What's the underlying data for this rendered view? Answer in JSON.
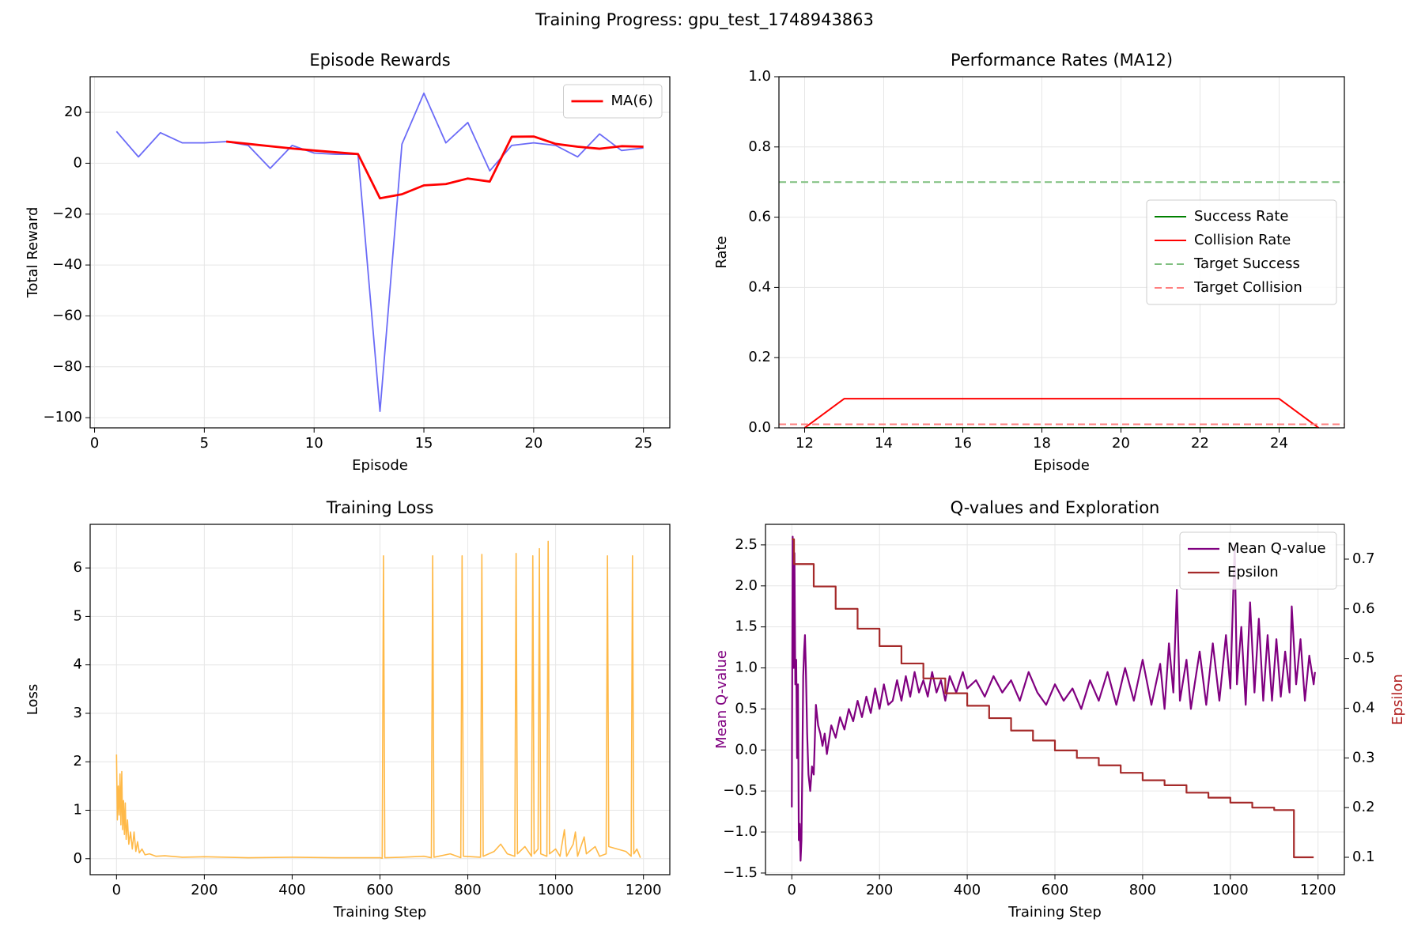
{
  "title": "Training Progress: gpu_test_1748943863",
  "chart_data": [
    {
      "type": "line",
      "title": "Episode Rewards",
      "xlabel": "Episode",
      "ylabel": "Total Reward",
      "xlim": [
        -0.2,
        26.2
      ],
      "ylim": [
        -104,
        34
      ],
      "xticks": [
        0,
        5,
        10,
        15,
        20,
        25
      ],
      "yticks": [
        {
          "value": -100,
          "label": "−100"
        },
        {
          "value": -80,
          "label": "−80"
        },
        {
          "value": -60,
          "label": "−60"
        },
        {
          "value": -40,
          "label": "−40"
        },
        {
          "value": -20,
          "label": "−20"
        },
        0,
        20
      ],
      "grid": true,
      "legend": "upper right",
      "series": [
        {
          "color": "#6b6bf7",
          "width": 1.8,
          "x": [
            1,
            2,
            3,
            4,
            5,
            6,
            7,
            8,
            9,
            10,
            11,
            12,
            13,
            14,
            15,
            16,
            17,
            18,
            19,
            20,
            21,
            22,
            23,
            24,
            25
          ],
          "values": [
            12.5,
            2.5,
            12,
            8,
            8,
            8.5,
            7,
            -2,
            7,
            4,
            3.5,
            3.5,
            -97.5,
            7.5,
            27.5,
            8,
            16,
            -3,
            7,
            8,
            7,
            2.5,
            11.5,
            5,
            6
          ]
        },
        {
          "name": "MA(6)",
          "color": "#ff0000",
          "width": 2.8,
          "x": [
            6,
            7,
            8,
            9,
            10,
            11,
            12,
            13,
            14,
            15,
            16,
            17,
            18,
            19,
            20,
            21,
            22,
            23,
            24,
            25
          ],
          "values": [
            8.5,
            7.6,
            6.7,
            5.8,
            5.0,
            4.3,
            3.6,
            -13.8,
            -12.2,
            -8.7,
            -8.2,
            -6,
            -7.2,
            10.4,
            10.5,
            7.6,
            6.5,
            5.7,
            6.7,
            6.5
          ]
        }
      ]
    },
    {
      "type": "line",
      "title": "Performance Rates (MA12)",
      "xlabel": "Episode",
      "ylabel": "Rate",
      "xlim": [
        11.35,
        25.65
      ],
      "ylim": [
        0,
        1
      ],
      "xticks": [
        12,
        14,
        16,
        18,
        20,
        22,
        24
      ],
      "yticks": [
        {
          "value": 0,
          "label": "0.0"
        },
        0.2,
        0.4,
        0.6,
        0.8,
        {
          "value": 1,
          "label": "1.0"
        }
      ],
      "grid": true,
      "legend": "center right",
      "series": [
        {
          "name": "Success Rate",
          "color": "#008000",
          "width": 2,
          "x": [
            12,
            13,
            14,
            15,
            16,
            17,
            18,
            19,
            20,
            21,
            22,
            23,
            24,
            25
          ],
          "values": [
            0,
            0,
            0,
            0,
            0,
            0,
            0,
            0,
            0,
            0,
            0,
            0,
            0,
            0
          ]
        },
        {
          "name": "Collision Rate",
          "color": "#ff0000",
          "width": 2,
          "x": [
            12,
            13,
            14,
            15,
            16,
            17,
            18,
            19,
            20,
            21,
            22,
            23,
            24,
            25
          ],
          "values": [
            0,
            0.083,
            0.083,
            0.083,
            0.083,
            0.083,
            0.083,
            0.083,
            0.083,
            0.083,
            0.083,
            0.083,
            0.083,
            0
          ]
        },
        {
          "name": "Target Success",
          "color": "#7fbf7f",
          "width": 2,
          "dash": true,
          "kind": "hline",
          "value": 0.7
        },
        {
          "name": "Target Collision",
          "color": "#ff7f7f",
          "width": 2,
          "dash": true,
          "kind": "hline",
          "value": 0.01
        }
      ]
    },
    {
      "type": "line",
      "title": "Training Loss",
      "xlabel": "Training Step",
      "ylabel": "Loss",
      "xlim": [
        -60,
        1260
      ],
      "ylim": [
        -0.33,
        6.9
      ],
      "xticks": [
        0,
        200,
        400,
        600,
        800,
        1000,
        1200
      ],
      "yticks": [
        0,
        1,
        2,
        3,
        4,
        5,
        6
      ],
      "grid": true,
      "series": [
        {
          "color": "#ffb947",
          "width": 1.6,
          "x": [
            0,
            2,
            4,
            6,
            8,
            10,
            12,
            14,
            16,
            18,
            20,
            22,
            25,
            28,
            32,
            36,
            40,
            44,
            48,
            52,
            58,
            65,
            75,
            90,
            110,
            150,
            200,
            300,
            400,
            500,
            600,
            605,
            608,
            611,
            650,
            700,
            717,
            720,
            723,
            760,
            784,
            787,
            790,
            829,
            832,
            835,
            860,
            875,
            890,
            907,
            910,
            913,
            930,
            945,
            948,
            951,
            960,
            963,
            966,
            980,
            983,
            986,
            1000,
            1010,
            1020,
            1025,
            1040,
            1045,
            1050,
            1065,
            1070,
            1090,
            1100,
            1115,
            1118,
            1121,
            1140,
            1160,
            1172,
            1175,
            1178,
            1185,
            1193
          ],
          "values": [
            2.15,
            0.8,
            1.5,
            0.9,
            1.75,
            0.7,
            1.8,
            0.6,
            1.2,
            0.5,
            1.15,
            0.4,
            0.8,
            0.3,
            0.55,
            0.2,
            0.55,
            0.15,
            0.35,
            0.12,
            0.2,
            0.08,
            0.1,
            0.05,
            0.06,
            0.03,
            0.04,
            0.02,
            0.03,
            0.02,
            0.02,
            0.01,
            6.25,
            0.02,
            0.03,
            0.05,
            0.02,
            6.25,
            0.03,
            0.1,
            0.02,
            6.25,
            0.05,
            0.03,
            6.28,
            0.05,
            0.15,
            0.3,
            0.1,
            0.05,
            6.3,
            0.1,
            0.25,
            0.05,
            6.25,
            0.1,
            0.2,
            6.4,
            0.1,
            0.05,
            6.55,
            0.1,
            0.2,
            0.05,
            0.6,
            0.05,
            0.3,
            0.55,
            0.05,
            0.45,
            0.1,
            0.25,
            0.05,
            0.1,
            6.25,
            0.25,
            0.2,
            0.15,
            0.05,
            6.25,
            0.1,
            0.2,
            0.02
          ]
        }
      ]
    },
    {
      "type": "line",
      "title": "Q-values and Exploration",
      "xlabel": "Training Step",
      "ylabel": "Mean Q-value",
      "y2label": "Epsilon",
      "ylabel_color": "#800080",
      "y2label_color": "#b22222",
      "xlim": [
        -60,
        1260
      ],
      "ylim": [
        -1.52,
        2.75
      ],
      "y2lim": [
        0.065,
        0.77
      ],
      "xticks": [
        0,
        200,
        400,
        600,
        800,
        1000,
        1200
      ],
      "yticks": [
        {
          "value": -1.5,
          "label": "−1.5"
        },
        {
          "value": -1,
          "label": "−1.0"
        },
        {
          "value": -0.5,
          "label": "−0.5"
        },
        {
          "value": 0,
          "label": "0.0"
        },
        0.5,
        {
          "value": 1,
          "label": "1.0"
        },
        1.5,
        {
          "value": 2,
          "label": "2.0"
        },
        2.5
      ],
      "y2ticks": [
        0.1,
        0.2,
        0.3,
        0.4,
        0.5,
        0.6,
        0.7
      ],
      "grid": true,
      "legend": "upper right",
      "series": [
        {
          "name": "Mean Q-value",
          "color": "#800080",
          "width": 2.2,
          "x": [
            0,
            2,
            4,
            6,
            8,
            10,
            12,
            14,
            16,
            18,
            20,
            22,
            24,
            26,
            28,
            30,
            32,
            35,
            38,
            42,
            46,
            50,
            55,
            60,
            65,
            70,
            75,
            80,
            90,
            100,
            110,
            120,
            130,
            140,
            150,
            160,
            170,
            180,
            190,
            200,
            210,
            220,
            230,
            240,
            250,
            260,
            270,
            280,
            290,
            300,
            310,
            320,
            330,
            340,
            350,
            360,
            375,
            390,
            400,
            420,
            440,
            460,
            480,
            500,
            520,
            540,
            560,
            580,
            600,
            620,
            640,
            660,
            680,
            700,
            720,
            740,
            760,
            780,
            800,
            820,
            840,
            850,
            860,
            870,
            878,
            885,
            900,
            910,
            930,
            945,
            960,
            975,
            990,
            1000,
            1010,
            1015,
            1025,
            1035,
            1045,
            1055,
            1065,
            1075,
            1085,
            1095,
            1105,
            1115,
            1125,
            1135,
            1140,
            1150,
            1160,
            1170,
            1180,
            1190,
            1193
          ],
          "values": [
            -0.7,
            2.6,
            1.0,
            2.4,
            0.8,
            1.1,
            -0.1,
            0.8,
            -1.1,
            -0.9,
            -1.35,
            -1.1,
            -0.2,
            0.9,
            1.2,
            1.4,
            1.0,
            0.2,
            -0.3,
            -0.5,
            -0.2,
            -0.3,
            0.55,
            0.3,
            0.2,
            0.05,
            0.2,
            -0.05,
            0.3,
            0.15,
            0.4,
            0.25,
            0.5,
            0.35,
            0.6,
            0.4,
            0.65,
            0.45,
            0.75,
            0.5,
            0.8,
            0.55,
            0.6,
            0.85,
            0.6,
            0.9,
            0.65,
            0.95,
            0.7,
            0.85,
            0.65,
            0.95,
            0.7,
            0.85,
            0.6,
            0.9,
            0.7,
            0.95,
            0.75,
            0.85,
            0.65,
            0.9,
            0.7,
            0.85,
            0.6,
            0.95,
            0.7,
            0.55,
            0.8,
            0.6,
            0.75,
            0.5,
            0.85,
            0.6,
            0.95,
            0.55,
            1.0,
            0.6,
            1.1,
            0.55,
            1.05,
            0.5,
            1.3,
            0.7,
            1.95,
            0.6,
            1.1,
            0.5,
            1.2,
            0.55,
            1.3,
            0.6,
            1.4,
            0.75,
            2.5,
            0.8,
            1.5,
            0.55,
            1.8,
            0.7,
            1.6,
            0.6,
            1.4,
            0.6,
            1.35,
            0.65,
            1.2,
            0.7,
            1.75,
            0.8,
            1.35,
            0.6,
            1.15,
            0.8,
            0.95
          ]
        },
        {
          "name": "Epsilon",
          "color": "#a52a2a",
          "width": 2.2,
          "axis": "y2",
          "x": [
            0,
            5,
            5,
            50,
            50,
            100,
            100,
            150,
            150,
            200,
            200,
            250,
            250,
            300,
            300,
            350,
            350,
            400,
            400,
            450,
            450,
            500,
            500,
            550,
            550,
            600,
            600,
            650,
            650,
            700,
            700,
            750,
            750,
            800,
            800,
            850,
            850,
            900,
            900,
            950,
            950,
            1000,
            1000,
            1050,
            1050,
            1100,
            1100,
            1145,
            1145,
            1190
          ],
          "values": [
            0.74,
            0.74,
            0.69,
            0.69,
            0.645,
            0.645,
            0.6,
            0.6,
            0.56,
            0.56,
            0.525,
            0.525,
            0.49,
            0.49,
            0.46,
            0.46,
            0.43,
            0.43,
            0.405,
            0.405,
            0.38,
            0.38,
            0.355,
            0.355,
            0.335,
            0.335,
            0.315,
            0.315,
            0.3,
            0.3,
            0.285,
            0.285,
            0.27,
            0.27,
            0.255,
            0.255,
            0.245,
            0.245,
            0.23,
            0.23,
            0.22,
            0.22,
            0.21,
            0.21,
            0.2,
            0.2,
            0.195,
            0.195,
            0.1,
            0.1
          ]
        }
      ]
    }
  ]
}
